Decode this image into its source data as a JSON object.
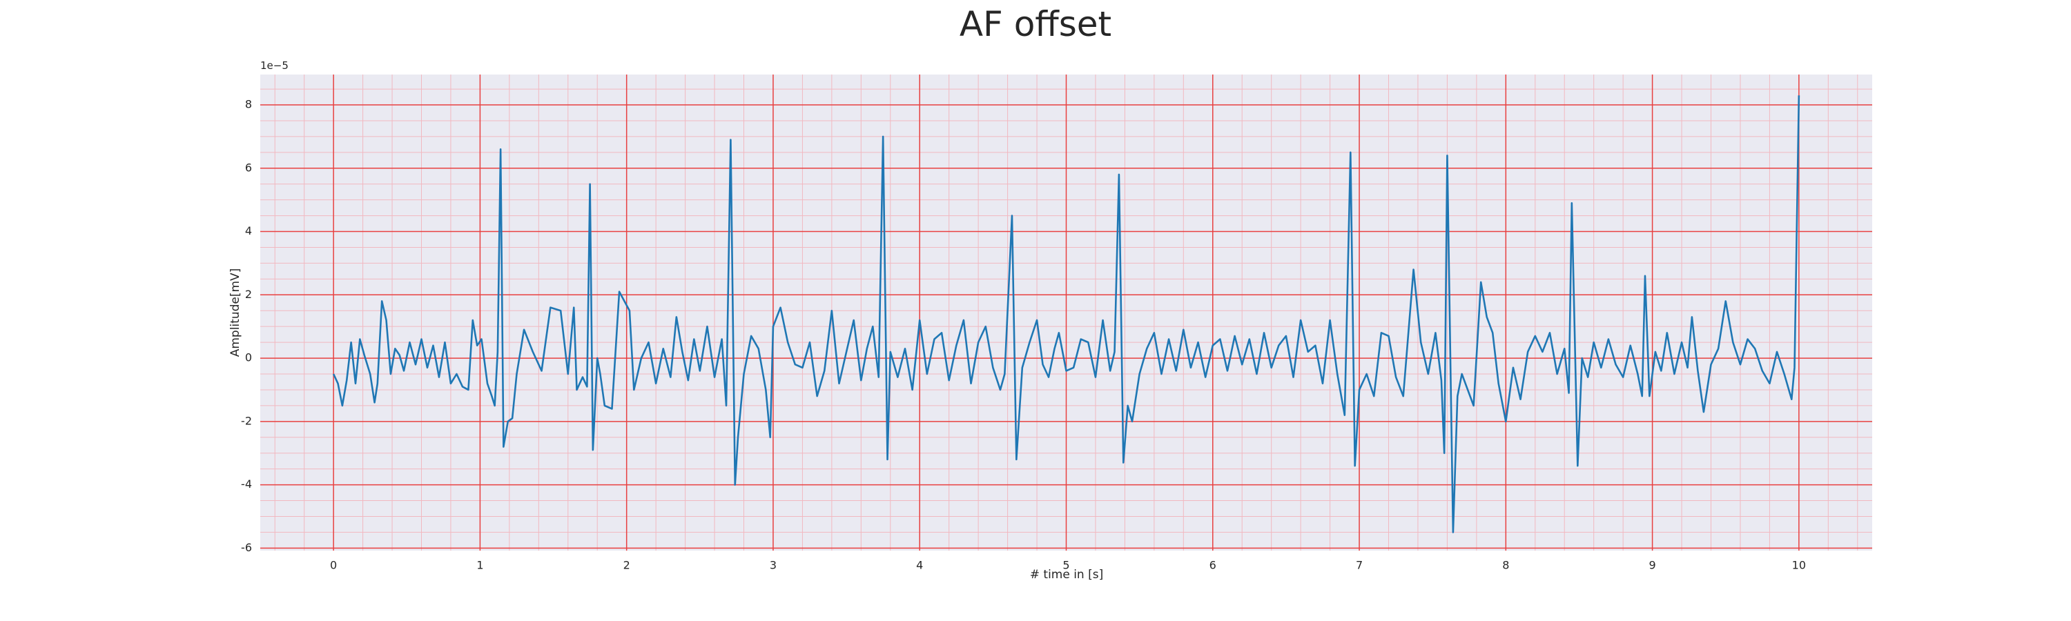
{
  "chart_data": {
    "type": "line",
    "title": "AF offset",
    "xlabel": "# time in [s]",
    "ylabel": "Amplitude[mV]",
    "offset_label": "1e−5",
    "xlim": [
      -0.5,
      10.5
    ],
    "ylim": [
      -6.08,
      8.96
    ],
    "xticks": [
      0,
      1,
      2,
      3,
      4,
      5,
      6,
      7,
      8,
      9,
      10
    ],
    "yticks": [
      -6,
      -4,
      -2,
      0,
      2,
      4,
      6,
      8
    ],
    "xminorticks": [
      -0.4,
      -0.2,
      0.2,
      0.4,
      0.6,
      0.8,
      1.2,
      1.4,
      1.6,
      1.8,
      2.2,
      2.4,
      2.6,
      2.8,
      3.2,
      3.4,
      3.6,
      3.8,
      4.2,
      4.4,
      4.6,
      4.8,
      5.2,
      5.4,
      5.6,
      5.8,
      6.2,
      6.4,
      6.6,
      6.8,
      7.2,
      7.4,
      7.6,
      7.8,
      8.2,
      8.4,
      8.6,
      8.8,
      9.2,
      9.4,
      9.6,
      9.8,
      10.2,
      10.4
    ],
    "yminorticks": [
      -5.5,
      -5,
      -4.5,
      -3.5,
      -3,
      -2.5,
      -1.5,
      -1,
      -0.5,
      0.5,
      1,
      1.5,
      2.5,
      3,
      3.5,
      4.5,
      5,
      5.5,
      6.5,
      7,
      7.5,
      8.5
    ],
    "grid": true,
    "grid_color": "#e84040",
    "minor_grid_color": "#f2b8c0",
    "background": "#eaeaf2",
    "series": [
      {
        "name": "AF offset",
        "color": "#1f77b4",
        "x": [
          0,
          0.03,
          0.06,
          0.09,
          0.12,
          0.15,
          0.18,
          0.21,
          0.25,
          0.28,
          0.3,
          0.33,
          0.36,
          0.39,
          0.42,
          0.45,
          0.48,
          0.52,
          0.56,
          0.6,
          0.64,
          0.68,
          0.72,
          0.76,
          0.8,
          0.84,
          0.88,
          0.92,
          0.95,
          0.98,
          1.01,
          1.05,
          1.08,
          1.1,
          1.12,
          1.14,
          1.16,
          1.19,
          1.22,
          1.25,
          1.3,
          1.36,
          1.42,
          1.48,
          1.55,
          1.6,
          1.64,
          1.66,
          1.7,
          1.73,
          1.75,
          1.77,
          1.8,
          1.82,
          1.85,
          1.9,
          1.95,
          2.02,
          2.05,
          2.1,
          2.15,
          2.2,
          2.25,
          2.3,
          2.34,
          2.38,
          2.42,
          2.46,
          2.5,
          2.55,
          2.6,
          2.65,
          2.68,
          2.71,
          2.74,
          2.76,
          2.8,
          2.85,
          2.9,
          2.95,
          2.98,
          3.0,
          3.05,
          3.1,
          3.15,
          3.2,
          3.25,
          3.3,
          3.35,
          3.4,
          3.45,
          3.5,
          3.55,
          3.6,
          3.64,
          3.68,
          3.72,
          3.75,
          3.78,
          3.8,
          3.85,
          3.9,
          3.95,
          4.0,
          4.05,
          4.1,
          4.15,
          4.2,
          4.25,
          4.3,
          4.35,
          4.4,
          4.45,
          4.5,
          4.55,
          4.58,
          4.63,
          4.66,
          4.7,
          4.75,
          4.8,
          4.84,
          4.88,
          4.92,
          4.95,
          5.0,
          5.05,
          5.1,
          5.15,
          5.2,
          5.25,
          5.3,
          5.33,
          5.36,
          5.39,
          5.42,
          5.45,
          5.5,
          5.55,
          5.6,
          5.65,
          5.7,
          5.75,
          5.8,
          5.85,
          5.9,
          5.95,
          6.0,
          6.05,
          6.1,
          6.15,
          6.2,
          6.25,
          6.3,
          6.35,
          6.4,
          6.45,
          6.5,
          6.55,
          6.6,
          6.65,
          6.7,
          6.75,
          6.8,
          6.85,
          6.9,
          6.94,
          6.97,
          7.0,
          7.05,
          7.1,
          7.15,
          7.2,
          7.25,
          7.3,
          7.37,
          7.42,
          7.47,
          7.52,
          7.56,
          7.58,
          7.6,
          7.64,
          7.67,
          7.7,
          7.74,
          7.78,
          7.83,
          7.87,
          7.91,
          7.95,
          8.0,
          8.05,
          8.1,
          8.15,
          8.2,
          8.25,
          8.3,
          8.35,
          8.4,
          8.43,
          8.45,
          8.49,
          8.52,
          8.56,
          8.6,
          8.65,
          8.7,
          8.75,
          8.8,
          8.85,
          8.9,
          8.93,
          8.95,
          8.98,
          9.02,
          9.06,
          9.1,
          9.15,
          9.2,
          9.24,
          9.27,
          9.31,
          9.35,
          9.4,
          9.45,
          9.5,
          9.55,
          9.6,
          9.65,
          9.7,
          9.75,
          9.8,
          9.85,
          9.9,
          9.95,
          9.97,
          10.0
        ],
        "values": [
          -0.5,
          -0.8,
          -1.5,
          -0.7,
          0.5,
          -0.8,
          0.6,
          0.1,
          -0.5,
          -1.4,
          -0.8,
          1.8,
          1.2,
          -0.5,
          0.3,
          0.1,
          -0.4,
          0.5,
          -0.2,
          0.6,
          -0.3,
          0.4,
          -0.6,
          0.5,
          -0.8,
          -0.5,
          -0.9,
          -1.0,
          1.2,
          0.4,
          0.6,
          -0.8,
          -1.2,
          -1.5,
          0.2,
          6.6,
          -2.8,
          -2.0,
          -1.9,
          -0.5,
          0.9,
          0.2,
          -0.4,
          1.6,
          1.5,
          -0.5,
          1.6,
          -1.0,
          -0.6,
          -0.9,
          5.5,
          -2.9,
          0.0,
          -0.5,
          -1.5,
          -1.6,
          2.1,
          1.5,
          -1.0,
          0.0,
          0.5,
          -0.8,
          0.3,
          -0.6,
          1.3,
          0.2,
          -0.7,
          0.6,
          -0.4,
          1.0,
          -0.6,
          0.6,
          -1.5,
          6.9,
          -4.0,
          -2.5,
          -0.5,
          0.7,
          0.3,
          -1.0,
          -2.5,
          1.0,
          1.6,
          0.5,
          -0.2,
          -0.3,
          0.5,
          -1.2,
          -0.4,
          1.5,
          -0.8,
          0.2,
          1.2,
          -0.7,
          0.3,
          1.0,
          -0.6,
          7.0,
          -3.2,
          0.2,
          -0.6,
          0.3,
          -1.0,
          1.2,
          -0.5,
          0.6,
          0.8,
          -0.7,
          0.4,
          1.2,
          -0.8,
          0.5,
          1.0,
          -0.3,
          -1.0,
          -0.5,
          4.5,
          -3.2,
          -0.3,
          0.5,
          1.2,
          -0.2,
          -0.6,
          0.3,
          0.8,
          -0.4,
          -0.3,
          0.6,
          0.5,
          -0.6,
          1.2,
          -0.4,
          0.2,
          5.8,
          -3.3,
          -1.5,
          -2.0,
          -0.5,
          0.3,
          0.8,
          -0.5,
          0.6,
          -0.4,
          0.9,
          -0.3,
          0.5,
          -0.6,
          0.4,
          0.6,
          -0.4,
          0.7,
          -0.2,
          0.6,
          -0.5,
          0.8,
          -0.3,
          0.4,
          0.7,
          -0.6,
          1.2,
          0.2,
          0.4,
          -0.8,
          1.2,
          -0.5,
          -1.8,
          6.5,
          -3.4,
          -1.0,
          -0.5,
          -1.2,
          0.8,
          0.7,
          -0.6,
          -1.2,
          2.8,
          0.5,
          -0.5,
          0.8,
          -0.7,
          -3.0,
          6.4,
          -5.5,
          -1.2,
          -0.5,
          -1.0,
          -1.5,
          2.4,
          1.3,
          0.8,
          -0.8,
          -2.0,
          -0.3,
          -1.3,
          0.2,
          0.7,
          0.2,
          0.8,
          -0.5,
          0.3,
          -1.1,
          4.9,
          -3.4,
          0.0,
          -0.6,
          0.5,
          -0.3,
          0.6,
          -0.2,
          -0.6,
          0.4,
          -0.5,
          -1.2,
          2.6,
          -1.2,
          0.2,
          -0.4,
          0.8,
          -0.5,
          0.5,
          -0.3,
          1.3,
          -0.4,
          -1.7,
          -0.2,
          0.3,
          1.8,
          0.5,
          -0.2,
          0.6,
          0.3,
          -0.4,
          -0.8,
          0.2,
          -0.5,
          -1.3,
          -0.3,
          8.3
        ]
      }
    ]
  }
}
